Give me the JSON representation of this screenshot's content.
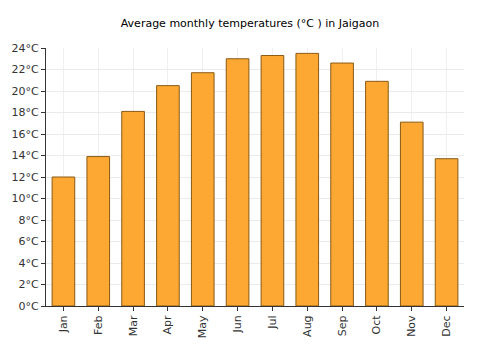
{
  "chart_data": {
    "type": "bar",
    "title": "Average monthly temperatures (°C ) in Jaigaon",
    "categories": [
      "Jan",
      "Feb",
      "Mar",
      "Apr",
      "May",
      "Jun",
      "Jul",
      "Aug",
      "Sep",
      "Oct",
      "Nov",
      "Dec"
    ],
    "values": [
      12,
      13.9,
      18.1,
      20.5,
      21.7,
      23,
      23.3,
      23.5,
      22.6,
      20.9,
      17.1,
      13.7
    ],
    "color": "#fca833",
    "ylim": [
      0,
      24
    ],
    "yticks": [
      {
        "value": 0,
        "label": "0°C"
      },
      {
        "value": 2,
        "label": "2°C"
      },
      {
        "value": 4,
        "label": "4°C"
      },
      {
        "value": 6,
        "label": "6°C"
      },
      {
        "value": 8,
        "label": "8°C"
      },
      {
        "value": 10,
        "label": "10°C"
      },
      {
        "value": 12,
        "label": "12°C"
      },
      {
        "value": 14,
        "label": "14°C"
      },
      {
        "value": 16,
        "label": "16°C"
      },
      {
        "value": 18,
        "label": "18°C"
      },
      {
        "value": 20,
        "label": "20°C"
      },
      {
        "value": 22,
        "label": "22°C"
      },
      {
        "value": 24,
        "label": "24°C"
      }
    ],
    "grid": true
  }
}
